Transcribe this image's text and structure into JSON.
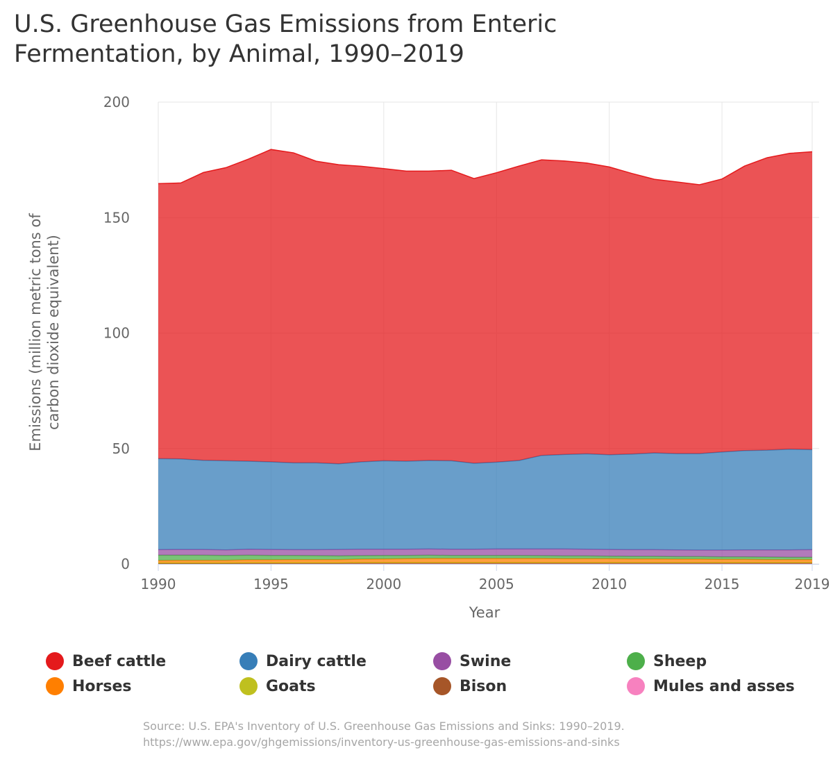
{
  "chart_data": {
    "type": "area",
    "stacked": true,
    "title": "U.S. Greenhouse Gas Emissions from Enteric Fermentation, by Animal, 1990–2019",
    "xlabel": "Year",
    "ylabel": "Emissions (million metric tons of carbon dioxide equivalent)",
    "xlim": [
      1990,
      2019
    ],
    "ylim": [
      0,
      200
    ],
    "x_ticks": [
      1990,
      1995,
      2000,
      2005,
      2010,
      2015,
      2019
    ],
    "y_ticks": [
      0,
      50,
      100,
      150,
      200
    ],
    "x": [
      1990,
      1991,
      1992,
      1993,
      1994,
      1995,
      1996,
      1997,
      1998,
      1999,
      2000,
      2001,
      2002,
      2003,
      2004,
      2005,
      2006,
      2007,
      2008,
      2009,
      2010,
      2011,
      2012,
      2013,
      2014,
      2015,
      2016,
      2017,
      2018,
      2019
    ],
    "series": [
      {
        "name": "Mules and asses",
        "color": "#f781bf",
        "values": [
          0.1,
          0.1,
          0.1,
          0.1,
          0.1,
          0.1,
          0.1,
          0.1,
          0.1,
          0.1,
          0.1,
          0.1,
          0.1,
          0.1,
          0.1,
          0.1,
          0.1,
          0.1,
          0.1,
          0.1,
          0.1,
          0.1,
          0.1,
          0.1,
          0.1,
          0.1,
          0.1,
          0.1,
          0.1,
          0.1
        ]
      },
      {
        "name": "Bison",
        "color": "#a65628",
        "values": [
          0.1,
          0.1,
          0.1,
          0.1,
          0.2,
          0.2,
          0.2,
          0.2,
          0.2,
          0.3,
          0.3,
          0.3,
          0.3,
          0.3,
          0.3,
          0.3,
          0.3,
          0.3,
          0.3,
          0.3,
          0.3,
          0.3,
          0.3,
          0.3,
          0.3,
          0.3,
          0.3,
          0.3,
          0.3,
          0.3
        ]
      },
      {
        "name": "Goats",
        "color": "#bfc01f",
        "values": [
          0.3,
          0.3,
          0.3,
          0.3,
          0.3,
          0.3,
          0.3,
          0.3,
          0.3,
          0.3,
          0.3,
          0.3,
          0.3,
          0.3,
          0.3,
          0.3,
          0.3,
          0.3,
          0.3,
          0.3,
          0.3,
          0.3,
          0.3,
          0.3,
          0.3,
          0.3,
          0.3,
          0.3,
          0.3,
          0.3
        ]
      },
      {
        "name": "Horses",
        "color": "#ff7f00",
        "values": [
          1.0,
          1.1,
          1.1,
          1.1,
          1.2,
          1.2,
          1.3,
          1.3,
          1.3,
          1.4,
          1.5,
          1.6,
          1.7,
          1.7,
          1.7,
          1.7,
          1.7,
          1.7,
          1.6,
          1.6,
          1.6,
          1.5,
          1.5,
          1.4,
          1.4,
          1.3,
          1.3,
          1.2,
          1.2,
          1.2
        ]
      },
      {
        "name": "Sheep",
        "color": "#4daf4a",
        "values": [
          2.3,
          2.2,
          2.2,
          2.1,
          2.0,
          1.9,
          1.8,
          1.7,
          1.6,
          1.5,
          1.5,
          1.4,
          1.4,
          1.3,
          1.3,
          1.3,
          1.3,
          1.2,
          1.2,
          1.2,
          1.1,
          1.1,
          1.1,
          1.1,
          1.1,
          1.1,
          1.1,
          1.1,
          1.0,
          1.0
        ]
      },
      {
        "name": "Swine",
        "color": "#984ea3",
        "values": [
          2.4,
          2.5,
          2.5,
          2.4,
          2.6,
          2.6,
          2.5,
          2.6,
          2.8,
          2.8,
          2.7,
          2.7,
          2.7,
          2.7,
          2.7,
          2.8,
          2.8,
          2.9,
          3.0,
          2.9,
          2.9,
          2.9,
          2.9,
          2.9,
          2.8,
          2.9,
          3.0,
          3.1,
          3.2,
          3.3
        ]
      },
      {
        "name": "Dairy cattle",
        "color": "#377eb8",
        "values": [
          39.4,
          39.2,
          38.6,
          38.6,
          38.1,
          37.9,
          37.6,
          37.6,
          37.1,
          37.8,
          38.3,
          38.1,
          38.3,
          38.3,
          37.2,
          37.6,
          38.3,
          40.5,
          40.9,
          41.3,
          41.0,
          41.4,
          41.9,
          41.7,
          41.8,
          42.5,
          43.0,
          43.2,
          43.6,
          43.3
        ]
      },
      {
        "name": "Beef cattle",
        "color": "#e41a1c",
        "values": [
          119.1,
          119.5,
          124.6,
          126.9,
          130.8,
          135.3,
          134.2,
          130.6,
          129.5,
          128.0,
          126.5,
          125.6,
          125.3,
          125.8,
          123.3,
          125.3,
          127.5,
          128.0,
          127.1,
          125.9,
          124.6,
          121.5,
          118.5,
          117.6,
          116.4,
          118.2,
          123.2,
          126.6,
          128.1,
          129.0
        ]
      }
    ],
    "legend": [
      "Beef cattle",
      "Dairy cattle",
      "Swine",
      "Sheep",
      "Horses",
      "Goats",
      "Bison",
      "Mules and asses"
    ],
    "legend_position": "bottom"
  },
  "source": {
    "line1": "Source: U.S. EPA's Inventory of U.S. Greenhouse Gas Emissions and Sinks: 1990–2019.",
    "line2": "https://www.epa.gov/ghgemissions/inventory-us-greenhouse-gas-emissions-and-sinks"
  }
}
